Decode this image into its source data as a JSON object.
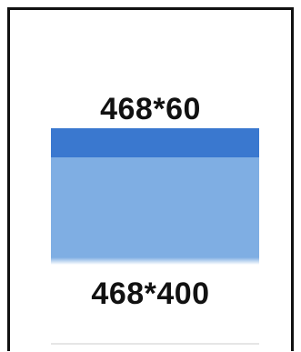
{
  "diagram": {
    "top_label": "468*60",
    "bottom_label": "468*400",
    "colors": {
      "frame": "#111111",
      "banner": "#3a78cf",
      "panel": "#7faee3",
      "background": "#ffffff"
    }
  }
}
